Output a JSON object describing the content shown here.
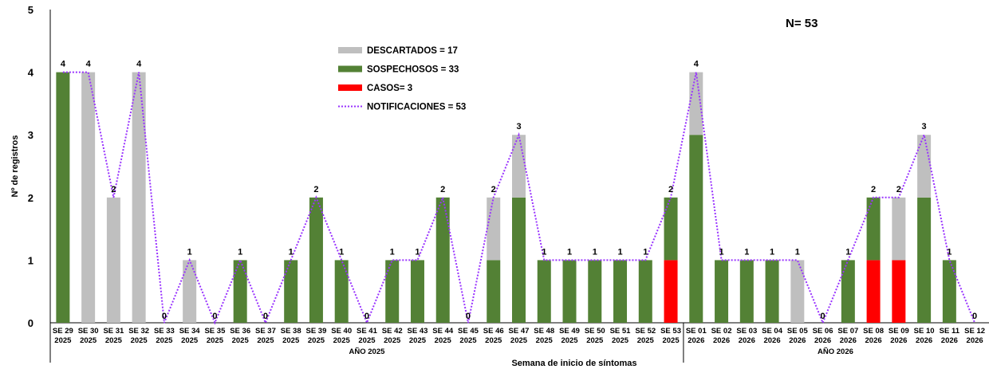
{
  "chart_data": {
    "type": "bar",
    "stacked": true,
    "n_label": "N= 53",
    "ylabel": "Nº de registros",
    "xlabel": "Semana de inicio de síntomas",
    "ylim": [
      0,
      5
    ],
    "yticks": [
      "0",
      "1",
      "2",
      "3",
      "4",
      "5"
    ],
    "groups": [
      {
        "label": "AÑO 2025",
        "start": 0,
        "end": 25
      },
      {
        "label": "AÑO 2026",
        "start": 25,
        "end": 37
      }
    ],
    "categories": [
      [
        "SE 29",
        "2025"
      ],
      [
        "SE 30",
        "2025"
      ],
      [
        "SE 31",
        "2025"
      ],
      [
        "SE 32",
        "2025"
      ],
      [
        "SE 33",
        "2025"
      ],
      [
        "SE 34",
        "2025"
      ],
      [
        "SE 35",
        "2025"
      ],
      [
        "SE 36",
        "2025"
      ],
      [
        "SE 37",
        "2025"
      ],
      [
        "SE 38",
        "2025"
      ],
      [
        "SE 39",
        "2025"
      ],
      [
        "SE 40",
        "2025"
      ],
      [
        "SE 41",
        "2025"
      ],
      [
        "SE 42",
        "2025"
      ],
      [
        "SE 43",
        "2025"
      ],
      [
        "SE 44",
        "2025"
      ],
      [
        "SE 45",
        "2025"
      ],
      [
        "SE 46",
        "2025"
      ],
      [
        "SE 47",
        "2025"
      ],
      [
        "SE 48",
        "2025"
      ],
      [
        "SE 49",
        "2025"
      ],
      [
        "SE 50",
        "2025"
      ],
      [
        "SE 51",
        "2025"
      ],
      [
        "SE 52",
        "2025"
      ],
      [
        "SE 53",
        "2025"
      ],
      [
        "SE 01",
        "2026"
      ],
      [
        "SE 02",
        "2026"
      ],
      [
        "SE 03",
        "2026"
      ],
      [
        "SE 04",
        "2026"
      ],
      [
        "SE 05",
        "2026"
      ],
      [
        "SE 06",
        "2026"
      ],
      [
        "SE 07",
        "2026"
      ],
      [
        "SE 08",
        "2026"
      ],
      [
        "SE 09",
        "2026"
      ],
      [
        "SE 10",
        "2026"
      ],
      [
        "SE 11",
        "2026"
      ],
      [
        "SE 12",
        "2026"
      ]
    ],
    "series": [
      {
        "key": "casos",
        "name": "CASOS= 3",
        "color": "#ff0000",
        "values": [
          0,
          0,
          0,
          0,
          0,
          0,
          0,
          0,
          0,
          0,
          0,
          0,
          0,
          0,
          0,
          0,
          0,
          0,
          0,
          0,
          0,
          0,
          0,
          0,
          1,
          0,
          0,
          0,
          0,
          0,
          0,
          0,
          1,
          1,
          0,
          0,
          0
        ]
      },
      {
        "key": "sospechosos",
        "name": "SOSPECHOSOS = 33",
        "color": "#538135",
        "values": [
          4,
          0,
          0,
          0,
          0,
          0,
          0,
          1,
          0,
          1,
          2,
          1,
          0,
          1,
          1,
          2,
          0,
          1,
          2,
          1,
          1,
          1,
          1,
          1,
          1,
          3,
          1,
          1,
          1,
          0,
          0,
          1,
          1,
          0,
          2,
          1,
          0
        ]
      },
      {
        "key": "descartados",
        "name": "DESCARTADOS = 17",
        "color": "#bfbfbf",
        "values": [
          0,
          4,
          2,
          4,
          0,
          1,
          0,
          0,
          0,
          0,
          0,
          0,
          0,
          0,
          0,
          0,
          0,
          1,
          1,
          0,
          0,
          0,
          0,
          0,
          0,
          1,
          0,
          0,
          0,
          1,
          0,
          0,
          0,
          1,
          1,
          0,
          0
        ]
      }
    ],
    "line": {
      "name": "NOTIFICACIONES = 53",
      "color": "#9933ff",
      "values": [
        4,
        4,
        2,
        4,
        0,
        1,
        0,
        1,
        0,
        1,
        2,
        1,
        0,
        1,
        1,
        2,
        0,
        2,
        3,
        1,
        1,
        1,
        1,
        1,
        2,
        4,
        1,
        1,
        1,
        1,
        0,
        1,
        2,
        2,
        3,
        1,
        0
      ],
      "labels": [
        "4",
        "4",
        "2",
        "4",
        "0",
        "1",
        "0",
        "1",
        "0",
        "1",
        "2",
        "1",
        "0",
        "1",
        "1",
        "2",
        "0",
        "2",
        "3",
        "1",
        "1",
        "1",
        "1",
        "1",
        "2",
        "4",
        "1",
        "1",
        "1",
        "1",
        "0",
        "1",
        "2",
        "2",
        "3",
        "1",
        "0"
      ]
    },
    "legend_order": [
      "descartados",
      "sospechosos",
      "casos",
      "line"
    ],
    "legend_position": "top-center"
  }
}
